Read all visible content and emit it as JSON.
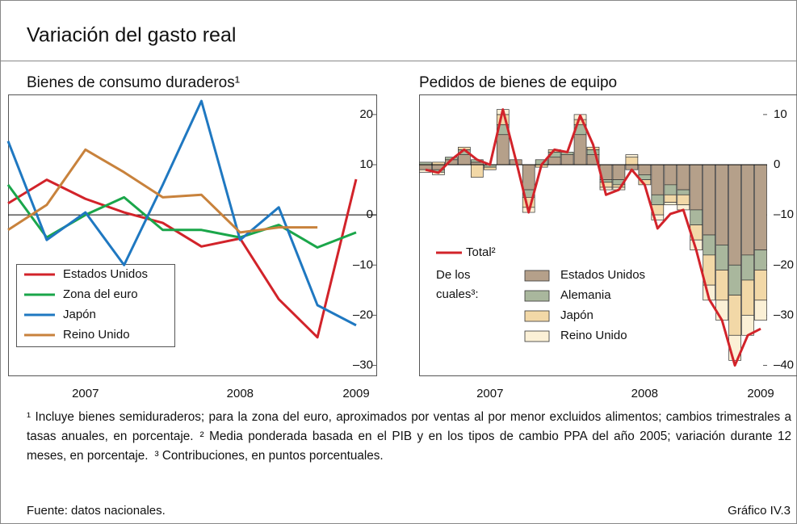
{
  "title": "Variación del gasto real",
  "chart_data": [
    {
      "type": "line",
      "title": "Bienes de consumo duraderos¹",
      "categories": [
        null,
        null,
        "2007",
        null,
        null,
        null,
        "2008",
        null,
        null,
        "2009"
      ],
      "series": [
        {
          "name": "Estados Unidos",
          "color": "#d2232a",
          "values": [
            2.3,
            7,
            3.2,
            0.5,
            -1.6,
            -6.3,
            -4.7,
            -16.8,
            -24.4,
            7.1
          ]
        },
        {
          "name": "Zona del euro",
          "color": "#1aa64a",
          "values": [
            6,
            -4.5,
            0,
            3.5,
            -3,
            -3,
            -4.5,
            -2,
            -6.5,
            -3.5
          ]
        },
        {
          "name": "Japón",
          "color": "#1f78c1",
          "values": [
            14.7,
            -5,
            0.5,
            -10,
            6,
            22.7,
            -5,
            1.5,
            -18,
            -22
          ]
        },
        {
          "name": "Reino Unido",
          "color": "#c8823c",
          "values": [
            -3,
            2,
            13,
            8.5,
            3.5,
            4,
            -3.5,
            -2.5,
            -2.5,
            null
          ]
        }
      ],
      "ylim": [
        -32,
        24
      ],
      "yticks": [
        {
          "value": -30,
          "label": "–30"
        },
        {
          "value": -20,
          "label": "–20"
        },
        {
          "value": -10,
          "label": "–10"
        },
        0,
        10,
        20
      ],
      "grid": false,
      "legend": "lower left"
    },
    {
      "type": "bar",
      "stacked": true,
      "title": "Pedidos de bienes de equipo",
      "categories": [
        null,
        null,
        null,
        null,
        null,
        "2007",
        null,
        null,
        null,
        null,
        null,
        null,
        null,
        null,
        null,
        null,
        null,
        "2008",
        null,
        null,
        null,
        null,
        null,
        null,
        null,
        null,
        "2009"
      ],
      "legend_title": [
        "De los",
        "cuales³:"
      ],
      "series": [
        {
          "name": "Total²",
          "type": "line",
          "color": "#d2232a",
          "values": [
            -1,
            -1.6,
            1,
            3,
            1,
            0,
            11,
            1,
            -9.5,
            0,
            3,
            2.5,
            9.8,
            4,
            -6,
            -5,
            -1,
            -4,
            -12.7,
            -9.8,
            -9,
            -17,
            -26.8,
            -31,
            -40,
            -34,
            -32.7
          ]
        },
        {
          "name": "Estados Unidos",
          "color": "#b5a08a",
          "values": [
            -1,
            -1,
            1,
            2,
            0.5,
            0,
            6,
            1,
            -5,
            0,
            1.5,
            2,
            6,
            2,
            -3,
            -3,
            -1,
            -2,
            -6,
            -4,
            -5,
            -9,
            -14,
            -16,
            -20,
            -18,
            -17
          ]
        },
        {
          "name": "Alemania",
          "color": "#a9b79d",
          "values": [
            0.5,
            -0.5,
            0.5,
            1,
            0.5,
            -0.5,
            2,
            0,
            -1.5,
            1,
            1,
            0.5,
            2,
            1,
            -0.5,
            -1,
            0,
            -1,
            -2,
            -2,
            -1,
            -3,
            -4,
            -5,
            -6,
            -5,
            -4
          ]
        },
        {
          "name": "Japón",
          "color": "#f2d8a7",
          "values": [
            0,
            0.5,
            0,
            0.5,
            -2.5,
            -0.5,
            2,
            0,
            -2,
            -0.5,
            0.5,
            0,
            1,
            0.5,
            -1,
            -0.5,
            1.5,
            -1,
            -2,
            -1.5,
            -2,
            -3,
            -6,
            -6,
            -8,
            -7,
            -6
          ]
        },
        {
          "name": "Reino Unido",
          "color": "#fbf0d6",
          "values": [
            -0.5,
            -0.5,
            0,
            0,
            0,
            0,
            1,
            0,
            -1,
            0,
            0,
            0,
            1,
            0,
            -0.5,
            -0.5,
            0.5,
            0,
            -1,
            -0.5,
            -1,
            -2,
            -3,
            -4,
            -5,
            -4,
            -4
          ]
        }
      ],
      "ylim": [
        -42,
        14
      ],
      "yticks": [
        {
          "value": -40,
          "label": "–40"
        },
        {
          "value": -30,
          "label": "–30"
        },
        {
          "value": -20,
          "label": "–20"
        },
        {
          "value": -10,
          "label": "–10"
        },
        0,
        10
      ],
      "grid": false,
      "legend": "lower left"
    }
  ],
  "footnotes": [
    "¹ Incluye bienes semiduraderos; para la zona del euro, aproximados por ventas al por menor excluidos alimentos; cambios trimestrales a tasas anuales, en porcentaje.",
    "² Media ponderada basada en el PIB y en los tipos de cambio PPA del año 2005; variación durante 12 meses, en porcentaje.",
    "³ Contribuciones, en puntos porcentuales."
  ],
  "source": "Fuente: datos nacionales.",
  "chart_id": "Gráfico IV.3"
}
